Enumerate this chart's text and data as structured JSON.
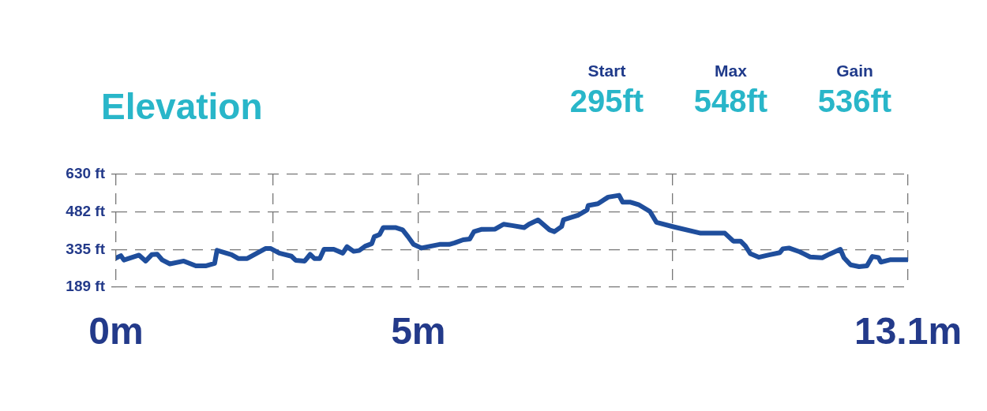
{
  "chart_data": {
    "type": "line",
    "title": "Elevation",
    "annotations": [
      "Start",
      "295ft",
      "Max",
      "548ft",
      "Gain",
      "536ft"
    ],
    "x": [
      0,
      0.08,
      0.13,
      0.38,
      0.49,
      0.59,
      0.68,
      0.76,
      0.89,
      1.12,
      1.32,
      1.48,
      1.63,
      1.67,
      1.91,
      2.02,
      2.17,
      2.47,
      2.56,
      2.7,
      2.9,
      2.97,
      3.12,
      3.21,
      3.28,
      3.37,
      3.44,
      3.6,
      3.75,
      3.82,
      3.93,
      4.02,
      4.12,
      4.23,
      4.27,
      4.36,
      4.42,
      4.62,
      4.74,
      4.83,
      4.92,
      5.05,
      5.35,
      5.51,
      5.6,
      5.74,
      5.85,
      5.92,
      6.05,
      6.27,
      6.41,
      6.55,
      6.75,
      6.83,
      6.98,
      7.17,
      7.25,
      7.37,
      7.4,
      7.65,
      7.79,
      7.81,
      7.97,
      8.14,
      8.32,
      8.38,
      8.51,
      8.64,
      8.83,
      8.94,
      9.22,
      9.67,
      10.07,
      10.21,
      10.33,
      10.41,
      10.49,
      10.63,
      10.8,
      10.98,
      11.03,
      11.13,
      11.31,
      11.48,
      11.68,
      11.8,
      11.98,
      12.04,
      12.15,
      12.29,
      12.42,
      12.51,
      12.61,
      12.65,
      12.8,
      13.1
    ],
    "series": [
      {
        "color": "#1f4e9c",
        "values": [
          303,
          312,
          295,
          314,
          291,
          316,
          318,
          296,
          280,
          291,
          272,
          272,
          282,
          333,
          316,
          301,
          301,
          340,
          340,
          322,
          310,
          294,
          291,
          317,
          301,
          301,
          337,
          337,
          322,
          347,
          329,
          332,
          349,
          359,
          386,
          395,
          422,
          422,
          413,
          386,
          356,
          342,
          356,
          356,
          362,
          374,
          377,
          406,
          415,
          416,
          435,
          430,
          422,
          435,
          452,
          413,
          406,
          426,
          452,
          471,
          491,
          508,
          515,
          541,
          548,
          521,
          521,
          512,
          485,
          442,
          425,
          400,
          400,
          369,
          369,
          350,
          320,
          306,
          315,
          324,
          339,
          342,
          327,
          307,
          304,
          318,
          337,
          304,
          276,
          269,
          272,
          309,
          305,
          287,
          296,
          296
        ]
      }
    ],
    "xlim": [
      0,
      13.1
    ],
    "xticks": [
      {
        "value": 0,
        "label": "0m"
      },
      {
        "value": 2.6,
        "label": null
      },
      {
        "value": 5,
        "label": "5m"
      },
      {
        "value": 9.2,
        "label": null
      },
      {
        "value": 13.1,
        "label": "13.1m"
      }
    ],
    "ylim": [
      189,
      630
    ],
    "yticks": [
      {
        "value": 189,
        "label": "189 ft"
      },
      {
        "value": 335,
        "label": "335 ft"
      },
      {
        "value": 482,
        "label": "482 ft"
      },
      {
        "value": 630,
        "label": "630 ft"
      }
    ],
    "grid": true,
    "legend": false,
    "marker": "none",
    "line_style": "solid"
  }
}
